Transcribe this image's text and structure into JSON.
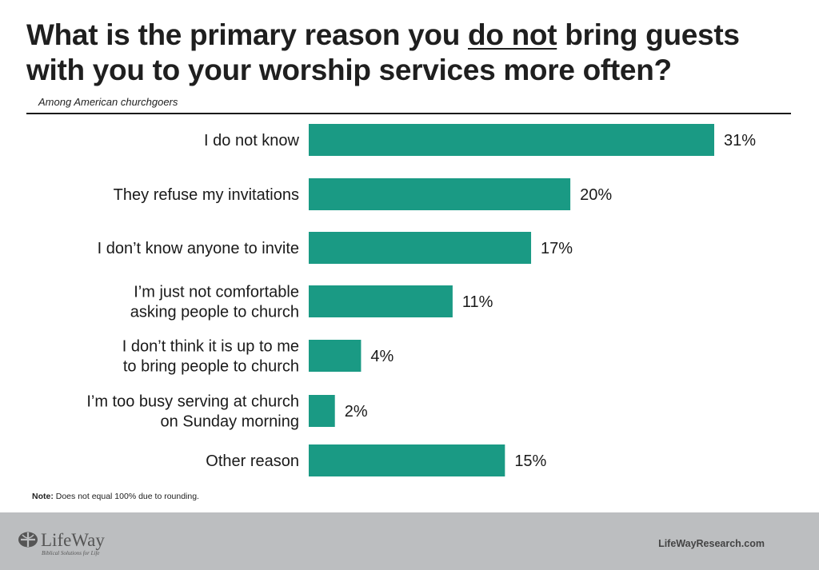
{
  "title": {
    "line1_before": "What is the primary reason you ",
    "line1_underlined": "do not",
    "line1_after": " bring guests",
    "line2": "with you to your worship services more often?"
  },
  "subtitle": "Among American churchgoers",
  "chart_data": {
    "type": "bar",
    "orientation": "horizontal",
    "title": "What is the primary reason you do not bring guests with you to your worship services more often?",
    "subtitle": "Among American churchgoers",
    "categories": [
      [
        "I do not know"
      ],
      [
        "They refuse my invitations"
      ],
      [
        "I don’t know anyone to invite"
      ],
      [
        "I’m just not comfortable",
        "asking people to church"
      ],
      [
        "I don’t think it is up to me",
        "to bring people to church"
      ],
      [
        "I’m too busy serving at church",
        "on Sunday morning"
      ],
      [
        "Other reason"
      ]
    ],
    "values": [
      31,
      20,
      17,
      11,
      4,
      2,
      15
    ],
    "value_labels": [
      "31%",
      "20%",
      "17%",
      "11%",
      "4%",
      "2%",
      "15%"
    ],
    "unit": "%",
    "xlim": [
      0,
      31
    ],
    "bar_color": "#1a9a84",
    "grid": false,
    "legend": "none"
  },
  "note": {
    "label": "Note:",
    "text": " Does not equal 100% due to rounding."
  },
  "footer": {
    "logo_text": "LifeWay",
    "logo_tagline": "Biblical Solutions for Life",
    "site": "LifeWayResearch.com",
    "background": "#bcbec0"
  }
}
